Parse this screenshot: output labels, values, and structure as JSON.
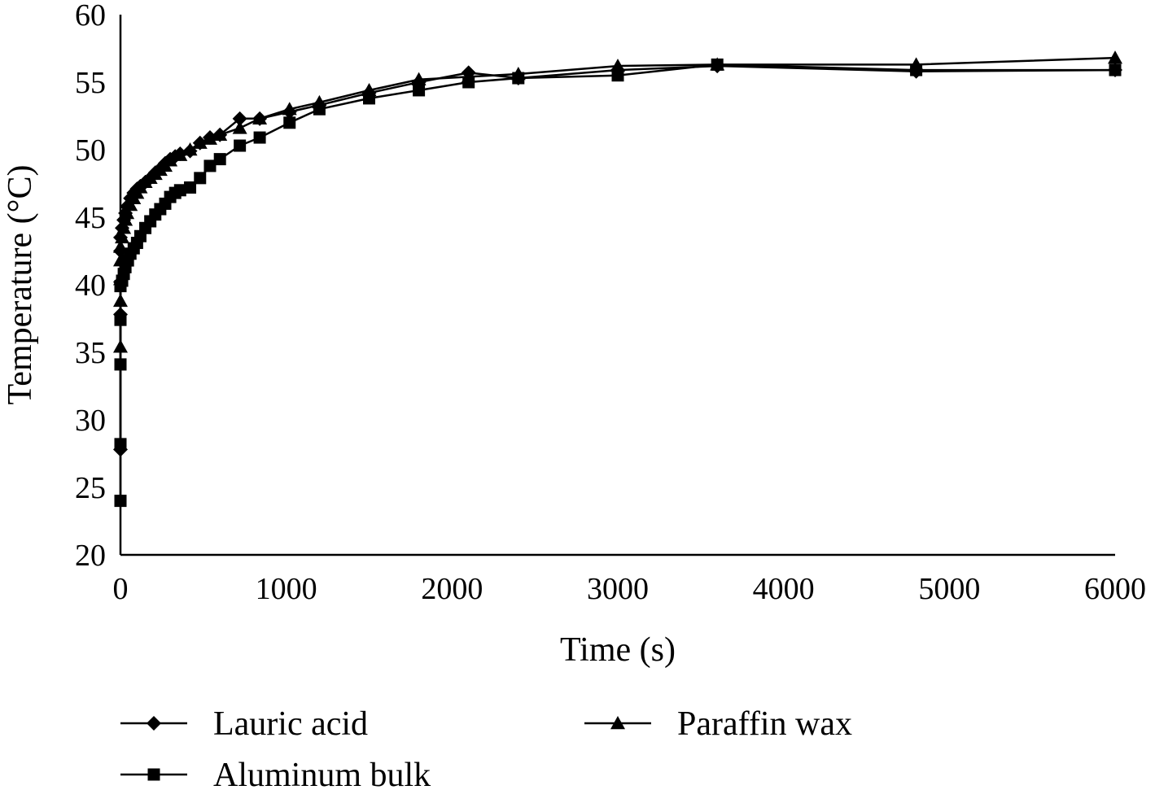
{
  "chart_data": {
    "type": "line",
    "xlabel": "Time (s)",
    "ylabel": "Temperature (°C)",
    "xlim": [
      0,
      6000
    ],
    "ylim": [
      20,
      60
    ],
    "x_ticks": [
      0,
      1000,
      2000,
      3000,
      4000,
      5000,
      6000
    ],
    "y_ticks": [
      20,
      25,
      30,
      35,
      40,
      45,
      50,
      55,
      60
    ],
    "grid": false,
    "legend_position": "bottom",
    "series": [
      {
        "name": "Lauric acid",
        "marker": "diamond",
        "color": "#000000",
        "x": [
          0,
          0,
          0,
          0,
          0,
          10,
          20,
          30,
          40,
          60,
          80,
          100,
          120,
          150,
          180,
          210,
          240,
          270,
          300,
          330,
          360,
          420,
          480,
          540,
          600,
          720,
          840,
          1020,
          1200,
          1500,
          1800,
          2100,
          2400,
          3000,
          3600,
          4800,
          6000
        ],
        "y": [
          27.8,
          37.8,
          40.2,
          42.5,
          43.5,
          44.2,
          44.8,
          45.3,
          45.8,
          46.4,
          46.8,
          47.1,
          47.3,
          47.6,
          47.9,
          48.3,
          48.6,
          49.0,
          49.3,
          49.5,
          49.7,
          49.9,
          50.5,
          50.9,
          51.1,
          52.3,
          52.3,
          52.8,
          53.3,
          54.2,
          55.0,
          55.7,
          55.3,
          55.9,
          56.2,
          55.8,
          55.9
        ]
      },
      {
        "name": "Aluminum bulk",
        "marker": "square",
        "color": "#000000",
        "x": [
          0,
          0,
          0,
          0,
          0,
          10,
          20,
          30,
          45,
          60,
          80,
          100,
          120,
          150,
          180,
          210,
          240,
          270,
          300,
          330,
          360,
          420,
          480,
          540,
          600,
          720,
          840,
          1020,
          1200,
          1500,
          1800,
          2100,
          2400,
          3000,
          3600,
          4800,
          6000
        ],
        "y": [
          24.0,
          28.2,
          34.1,
          37.4,
          39.9,
          40.3,
          40.8,
          41.3,
          41.8,
          42.3,
          42.7,
          43.1,
          43.6,
          44.2,
          44.7,
          45.2,
          45.6,
          46.0,
          46.5,
          46.8,
          47.0,
          47.2,
          47.9,
          48.8,
          49.3,
          50.3,
          50.9,
          52.0,
          53.0,
          53.8,
          54.4,
          55.0,
          55.3,
          55.5,
          56.3,
          55.9,
          55.9
        ]
      },
      {
        "name": "Paraffin wax",
        "marker": "triangle",
        "color": "#000000",
        "x": [
          0,
          0,
          0,
          0,
          0,
          10,
          20,
          30,
          40,
          60,
          80,
          100,
          120,
          150,
          180,
          210,
          240,
          270,
          300,
          360,
          420,
          480,
          540,
          600,
          720,
          840,
          1020,
          1200,
          1500,
          1800,
          2100,
          2400,
          3000,
          3600,
          4800,
          6000
        ],
        "y": [
          35.4,
          38.8,
          40.4,
          41.8,
          42.8,
          43.5,
          44.2,
          44.8,
          45.3,
          45.9,
          46.4,
          46.8,
          47.2,
          47.6,
          47.9,
          48.2,
          48.5,
          48.8,
          49.2,
          49.6,
          50.0,
          50.5,
          50.8,
          51.1,
          51.6,
          52.3,
          53.0,
          53.5,
          54.4,
          55.2,
          55.4,
          55.6,
          56.2,
          56.3,
          56.3,
          56.8
        ]
      }
    ]
  }
}
